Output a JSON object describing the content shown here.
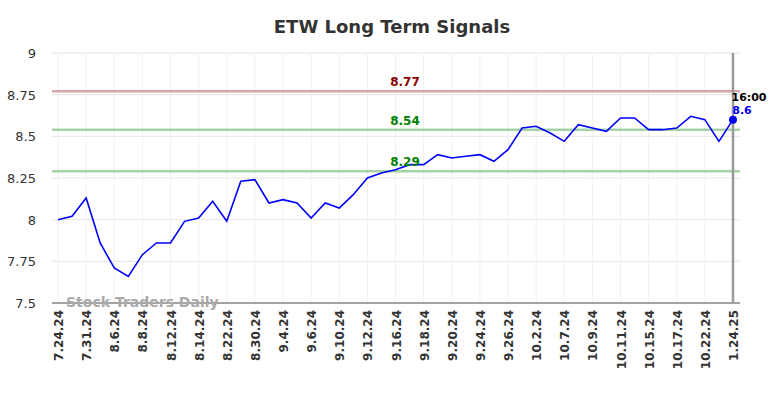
{
  "chart_data": {
    "type": "line",
    "title": "ETW Long Term Signals",
    "categories": [
      "7.24.24",
      null,
      "7.31.24",
      null,
      "8.6.24",
      null,
      "8.8.24",
      null,
      "8.12.24",
      null,
      "8.14.24",
      null,
      "8.22.24",
      null,
      "8.30.24",
      null,
      "9.4.24",
      null,
      "9.6.24",
      null,
      "9.10.24",
      null,
      "9.12.24",
      null,
      "9.16.24",
      null,
      "9.18.24",
      null,
      "9.20.24",
      null,
      "9.24.24",
      null,
      "9.26.24",
      null,
      "10.2.24",
      null,
      "10.7.24",
      null,
      "10.9.24",
      null,
      "10.11.24",
      null,
      "10.15.24",
      null,
      "10.17.24",
      null,
      "10.22.24",
      null,
      "1.24.25"
    ],
    "values": [
      8.0,
      8.02,
      8.13,
      7.86,
      7.71,
      7.66,
      7.79,
      7.86,
      7.86,
      7.99,
      8.01,
      8.11,
      7.99,
      8.23,
      8.24,
      8.1,
      8.12,
      8.1,
      8.01,
      8.1,
      8.07,
      8.15,
      8.25,
      8.28,
      8.3,
      8.33,
      8.33,
      8.39,
      8.37,
      8.38,
      8.39,
      8.35,
      8.42,
      8.55,
      8.56,
      8.52,
      8.47,
      8.57,
      8.55,
      8.53,
      8.61,
      8.61,
      8.54,
      8.54,
      8.55,
      8.62,
      8.6,
      8.47,
      8.6
    ],
    "color": "#0000ff",
    "ylim": [
      7.5,
      9
    ],
    "yticks": [
      7.5,
      7.75,
      8,
      8.25,
      8.5,
      8.75,
      9
    ],
    "grid": true,
    "levels": [
      {
        "value": 8.77,
        "color": "#8b0000"
      },
      {
        "value": 8.54,
        "color": "#008000"
      },
      {
        "value": 8.29,
        "color": "#008000"
      }
    ],
    "time_label": "16:00",
    "watermark": "Stock Traders Daily"
  }
}
